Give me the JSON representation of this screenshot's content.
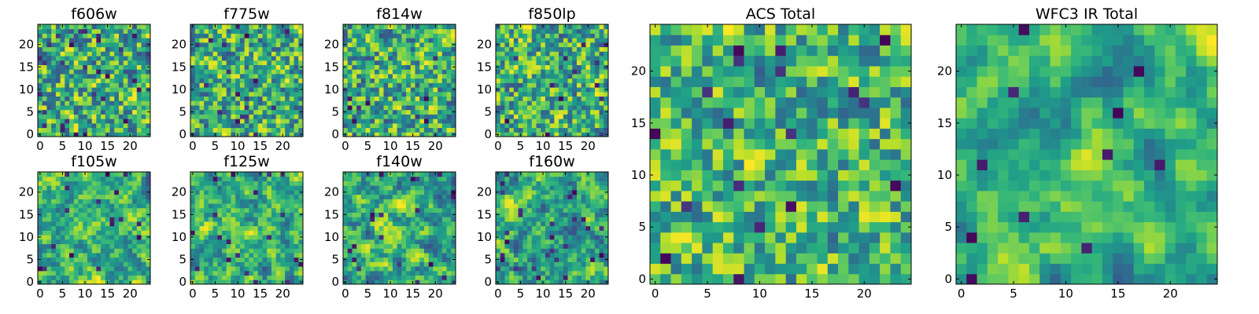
{
  "chart_data": [
    {
      "type": "heatmap",
      "title": "f606w",
      "grid_size": 25,
      "xticks": [
        "0",
        "5",
        "10",
        "15",
        "20"
      ],
      "yticks": [
        "0",
        "5",
        "10",
        "15",
        "20"
      ],
      "xlim": [
        -0.5,
        24.5
      ],
      "ylim": [
        -0.5,
        24.5
      ],
      "smoothness": 0.1,
      "dark_fraction": 0.04,
      "seed": 11,
      "colormap": "viridis",
      "value_range": [
        0.25,
        1.0
      ]
    },
    {
      "type": "heatmap",
      "title": "f775w",
      "grid_size": 25,
      "xticks": [
        "0",
        "5",
        "10",
        "15",
        "20"
      ],
      "yticks": [
        "0",
        "5",
        "10",
        "15",
        "20"
      ],
      "xlim": [
        -0.5,
        24.5
      ],
      "ylim": [
        -0.5,
        24.5
      ],
      "smoothness": 0.15,
      "dark_fraction": 0.03,
      "seed": 23,
      "colormap": "viridis",
      "value_range": [
        0.25,
        1.0
      ]
    },
    {
      "type": "heatmap",
      "title": "f814w",
      "grid_size": 25,
      "xticks": [
        "0",
        "5",
        "10",
        "15",
        "20"
      ],
      "yticks": [
        "0",
        "5",
        "10",
        "15",
        "20"
      ],
      "xlim": [
        -0.5,
        24.5
      ],
      "ylim": [
        -0.5,
        24.5
      ],
      "smoothness": 0.1,
      "dark_fraction": 0.02,
      "seed": 37,
      "colormap": "viridis",
      "value_range": [
        0.25,
        1.0
      ]
    },
    {
      "type": "heatmap",
      "title": "f850lp",
      "grid_size": 25,
      "xticks": [
        "0",
        "5",
        "10",
        "15",
        "20"
      ],
      "yticks": [
        "0",
        "5",
        "10",
        "15",
        "20"
      ],
      "xlim": [
        -0.5,
        24.5
      ],
      "ylim": [
        -0.5,
        24.5
      ],
      "smoothness": 0.1,
      "dark_fraction": 0.03,
      "seed": 41,
      "colormap": "viridis",
      "value_range": [
        0.25,
        1.0
      ]
    },
    {
      "type": "heatmap",
      "title": "f105w",
      "grid_size": 25,
      "xticks": [
        "0",
        "5",
        "10",
        "15",
        "20"
      ],
      "yticks": [
        "0",
        "5",
        "10",
        "15",
        "20"
      ],
      "xlim": [
        -0.5,
        24.5
      ],
      "ylim": [
        -0.5,
        24.5
      ],
      "smoothness": 0.45,
      "dark_fraction": 0.03,
      "seed": 53,
      "colormap": "viridis",
      "value_range": [
        0.25,
        1.0
      ]
    },
    {
      "type": "heatmap",
      "title": "f125w",
      "grid_size": 25,
      "xticks": [
        "0",
        "5",
        "10",
        "15",
        "20"
      ],
      "yticks": [
        "0",
        "5",
        "10",
        "15",
        "20"
      ],
      "xlim": [
        -0.5,
        24.5
      ],
      "ylim": [
        -0.5,
        24.5
      ],
      "smoothness": 0.45,
      "dark_fraction": 0.04,
      "seed": 67,
      "colormap": "viridis",
      "value_range": [
        0.25,
        1.0
      ]
    },
    {
      "type": "heatmap",
      "title": "f140w",
      "grid_size": 25,
      "xticks": [
        "0",
        "5",
        "10",
        "15",
        "20"
      ],
      "yticks": [
        "0",
        "5",
        "10",
        "15",
        "20"
      ],
      "xlim": [
        -0.5,
        24.5
      ],
      "ylim": [
        -0.5,
        24.5
      ],
      "smoothness": 0.45,
      "dark_fraction": 0.04,
      "seed": 71,
      "colormap": "viridis",
      "value_range": [
        0.25,
        1.0
      ]
    },
    {
      "type": "heatmap",
      "title": "f160w",
      "grid_size": 25,
      "xticks": [
        "0",
        "5",
        "10",
        "15",
        "20"
      ],
      "yticks": [
        "0",
        "5",
        "10",
        "15",
        "20"
      ],
      "xlim": [
        -0.5,
        24.5
      ],
      "ylim": [
        -0.5,
        24.5
      ],
      "smoothness": 0.45,
      "dark_fraction": 0.04,
      "seed": 83,
      "colormap": "viridis",
      "value_range": [
        0.25,
        1.0
      ]
    },
    {
      "type": "heatmap",
      "title": "ACS Total",
      "grid_size": 25,
      "xticks": [
        "0",
        "5",
        "10",
        "15",
        "20"
      ],
      "yticks": [
        "0",
        "5",
        "10",
        "15",
        "20"
      ],
      "xlim": [
        -0.5,
        24.5
      ],
      "ylim": [
        -0.5,
        24.5
      ],
      "smoothness": 0.2,
      "dark_fraction": 0.025,
      "seed": 97,
      "colormap": "viridis",
      "value_range": [
        0.3,
        1.0
      ]
    },
    {
      "type": "heatmap",
      "title": "WFC3 IR Total",
      "grid_size": 25,
      "xticks": [
        "0",
        "5",
        "10",
        "15",
        "20"
      ],
      "yticks": [
        "0",
        "5",
        "10",
        "15",
        "20"
      ],
      "xlim": [
        -0.5,
        24.5
      ],
      "ylim": [
        -0.5,
        24.5
      ],
      "smoothness": 0.6,
      "dark_fraction": 0.02,
      "seed": 101,
      "colormap": "viridis",
      "value_range": [
        0.3,
        1.0
      ]
    }
  ]
}
